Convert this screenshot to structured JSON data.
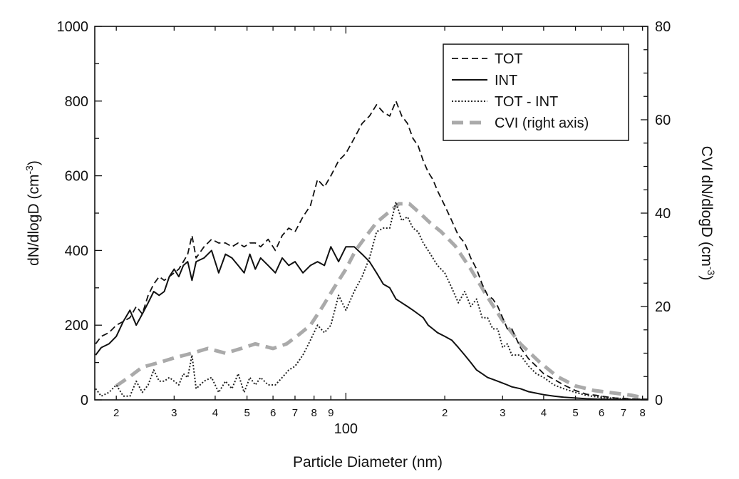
{
  "chart_data": {
    "type": "line",
    "xlabel": "Particle Diameter (nm)",
    "ylabel_left": "dN/dlogD (cm",
    "ylabel_left_sup": "-3",
    "ylabel_left_end": ")",
    "ylabel_right": "CVI dN/dlogD (cm",
    "ylabel_right_sup": "-3",
    "ylabel_right_end": ")",
    "x_scale": "log",
    "xlim": [
      17.2,
      830
    ],
    "ylim_left": [
      0,
      1000
    ],
    "ylim_right": [
      0,
      80
    ],
    "grid": false,
    "legend_position": "top-right",
    "x_tick_labels": [
      {
        "value": 20,
        "label": "2"
      },
      {
        "value": 30,
        "label": "3"
      },
      {
        "value": 40,
        "label": "4"
      },
      {
        "value": 50,
        "label": "5"
      },
      {
        "value": 60,
        "label": "6"
      },
      {
        "value": 70,
        "label": "7"
      },
      {
        "value": 80,
        "label": "8"
      },
      {
        "value": 90,
        "label": "9"
      },
      {
        "value": 100,
        "label": "100"
      },
      {
        "value": 200,
        "label": "2"
      },
      {
        "value": 300,
        "label": "3"
      },
      {
        "value": 400,
        "label": "4"
      },
      {
        "value": 500,
        "label": "5"
      },
      {
        "value": 600,
        "label": "6"
      },
      {
        "value": 700,
        "label": "7"
      },
      {
        "value": 800,
        "label": "8"
      }
    ],
    "y_left_ticks": [
      0,
      200,
      400,
      600,
      800,
      1000
    ],
    "y_right_ticks": [
      0,
      20,
      40,
      60,
      80
    ],
    "series": [
      {
        "name": "TOT",
        "axis": "left",
        "color": "#111111",
        "dash": "dashed",
        "x": [
          17.3,
          18,
          19,
          20,
          21,
          22,
          23,
          24,
          25,
          26,
          27,
          28,
          29,
          30,
          31,
          32,
          33,
          34,
          35,
          37,
          39,
          41,
          43,
          45,
          47,
          49,
          51,
          53,
          55,
          58,
          61,
          64,
          67,
          70,
          74,
          78,
          82,
          86,
          90,
          95,
          100,
          106,
          112,
          118,
          124,
          130,
          136,
          142,
          148,
          154,
          160,
          166,
          172,
          178,
          184,
          190,
          200,
          210,
          220,
          230,
          240,
          250,
          260,
          270,
          280,
          290,
          300,
          310,
          320,
          340,
          360,
          380,
          400,
          430,
          460,
          500,
          540,
          580,
          620,
          660,
          700,
          740,
          780,
          830
        ],
        "y": [
          150,
          170,
          180,
          200,
          210,
          220,
          250,
          230,
          280,
          310,
          330,
          320,
          330,
          340,
          350,
          370,
          390,
          440,
          380,
          410,
          430,
          420,
          420,
          410,
          420,
          410,
          420,
          420,
          410,
          430,
          400,
          440,
          460,
          450,
          490,
          520,
          590,
          570,
          600,
          640,
          660,
          700,
          740,
          760,
          790,
          770,
          760,
          800,
          760,
          740,
          700,
          680,
          640,
          610,
          590,
          560,
          520,
          480,
          440,
          420,
          380,
          350,
          310,
          280,
          270,
          250,
          220,
          190,
          190,
          140,
          110,
          90,
          70,
          55,
          40,
          25,
          15,
          12,
          8,
          5,
          4,
          3,
          2,
          2
        ]
      },
      {
        "name": "INT",
        "axis": "left",
        "color": "#111111",
        "dash": "solid",
        "x": [
          17.3,
          18,
          19,
          20,
          21,
          22,
          23,
          24,
          25,
          26,
          27,
          28,
          29,
          30,
          31,
          32,
          33,
          34,
          35,
          37,
          39,
          41,
          43,
          45,
          47,
          49,
          51,
          53,
          55,
          58,
          61,
          64,
          67,
          70,
          74,
          78,
          82,
          86,
          90,
          95,
          100,
          106,
          112,
          118,
          124,
          130,
          136,
          142,
          148,
          154,
          160,
          166,
          172,
          178,
          184,
          190,
          200,
          210,
          220,
          230,
          240,
          250,
          260,
          270,
          280,
          290,
          300,
          310,
          320,
          340,
          360,
          380,
          400,
          430,
          460,
          500,
          540,
          580,
          620,
          660,
          700,
          740,
          780,
          830
        ],
        "y": [
          120,
          140,
          150,
          170,
          210,
          240,
          200,
          230,
          260,
          290,
          280,
          290,
          330,
          350,
          330,
          360,
          370,
          320,
          370,
          380,
          400,
          340,
          390,
          380,
          360,
          340,
          390,
          350,
          380,
          360,
          340,
          380,
          360,
          370,
          340,
          360,
          370,
          360,
          410,
          370,
          410,
          410,
          390,
          370,
          340,
          310,
          300,
          270,
          260,
          250,
          240,
          230,
          220,
          200,
          190,
          180,
          170,
          160,
          140,
          120,
          100,
          80,
          70,
          60,
          55,
          50,
          45,
          40,
          35,
          30,
          22,
          18,
          14,
          10,
          7,
          5,
          3,
          2,
          2,
          1,
          1,
          1,
          1,
          1
        ]
      },
      {
        "name": "TOT - INT",
        "axis": "left",
        "color": "#222222",
        "dash": "dotted",
        "x": [
          17.3,
          18,
          19,
          20,
          21,
          22,
          23,
          24,
          25,
          26,
          27,
          28,
          29,
          30,
          31,
          32,
          33,
          34,
          35,
          37,
          39,
          41,
          43,
          45,
          47,
          49,
          51,
          53,
          55,
          58,
          61,
          64,
          67,
          70,
          74,
          78,
          82,
          86,
          90,
          95,
          100,
          106,
          112,
          118,
          124,
          130,
          136,
          142,
          148,
          154,
          160,
          166,
          172,
          178,
          184,
          190,
          200,
          210,
          220,
          230,
          240,
          250,
          260,
          270,
          280,
          290,
          300,
          310,
          320,
          340,
          360,
          380,
          400,
          430,
          460,
          500,
          540,
          580,
          620,
          660,
          700,
          740,
          780,
          830
        ],
        "y": [
          30,
          10,
          20,
          40,
          10,
          10,
          50,
          20,
          40,
          80,
          50,
          50,
          60,
          50,
          40,
          70,
          60,
          120,
          30,
          50,
          60,
          20,
          50,
          30,
          70,
          20,
          60,
          40,
          60,
          40,
          40,
          60,
          80,
          90,
          120,
          160,
          200,
          180,
          200,
          280,
          240,
          290,
          330,
          380,
          450,
          460,
          460,
          530,
          480,
          490,
          460,
          450,
          420,
          400,
          380,
          360,
          340,
          300,
          260,
          290,
          250,
          270,
          220,
          220,
          190,
          190,
          140,
          150,
          120,
          120,
          90,
          70,
          60,
          40,
          30,
          20,
          12,
          8,
          6,
          4,
          3,
          2,
          2,
          1
        ]
      },
      {
        "name": "CVI (right axis)",
        "axis": "right",
        "color": "#aaaaaa",
        "dash": "thick-dashed",
        "x": [
          20,
          22,
          24,
          27,
          30,
          34,
          38,
          43,
          48,
          53,
          60,
          66,
          72,
          78,
          85,
          92,
          100,
          107,
          115,
          124,
          134,
          145,
          156,
          168,
          180,
          195,
          215,
          240,
          270,
          300,
          340,
          390,
          440,
          500,
          570,
          650,
          740,
          800
        ],
        "y": [
          3,
          5,
          7,
          8,
          9,
          10,
          11,
          10,
          11,
          12,
          11,
          12,
          14,
          16,
          20,
          24,
          28,
          32,
          35,
          38,
          40,
          42,
          42,
          40,
          38,
          36,
          33,
          28,
          22,
          17,
          12,
          8,
          5,
          3,
          2,
          1.5,
          1,
          0.5
        ]
      }
    ]
  }
}
